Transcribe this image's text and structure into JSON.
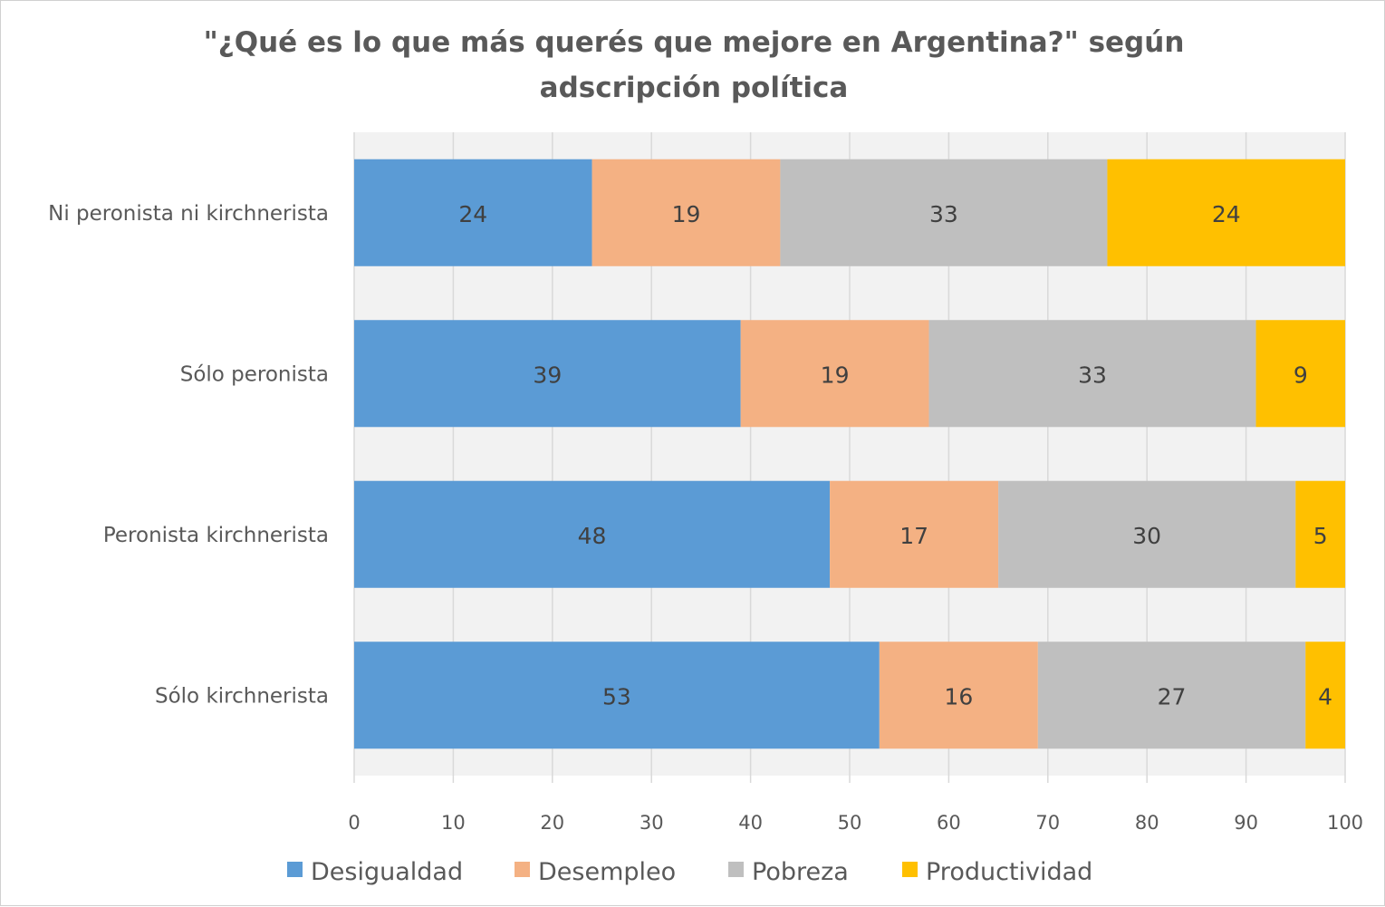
{
  "chart_data": {
    "type": "bar",
    "orientation": "horizontal",
    "stacked": true,
    "title_lines": [
      "\"¿Qué es lo que más querés que mejore en Argentina?\" según",
      "adscripción política"
    ],
    "categories": [
      "Ni peronista ni kirchnerista",
      "Sólo peronista",
      "Peronista kirchnerista",
      "Sólo kirchnerista"
    ],
    "series": [
      {
        "name": "Desigualdad",
        "color": "#5b9bd5",
        "values": [
          24,
          39,
          48,
          53
        ],
        "labels": [
          "24",
          "39",
          "48",
          "53"
        ]
      },
      {
        "name": "Desempleo",
        "color": "#f4b183",
        "values": [
          19,
          19,
          17,
          16
        ],
        "labels": [
          "19",
          "19",
          "17",
          "16"
        ]
      },
      {
        "name": "Pobreza",
        "color": "#bfbfbf",
        "values": [
          33,
          33,
          30,
          27
        ],
        "labels": [
          "33",
          "33",
          "30",
          "27"
        ]
      },
      {
        "name": "Productividad",
        "color": "#ffc000",
        "values": [
          24,
          9,
          5,
          4
        ],
        "labels": [
          "24",
          "9",
          "5",
          "4"
        ]
      }
    ],
    "xlim": [
      0,
      100
    ],
    "xticks": [
      "0",
      "10",
      "20",
      "30",
      "40",
      "50",
      "60",
      "70",
      "80",
      "90",
      "100"
    ],
    "grid": true,
    "legend_position": "bottom",
    "plot_background": "#f2f2f2",
    "gridline_color": "#d9d9d9"
  }
}
